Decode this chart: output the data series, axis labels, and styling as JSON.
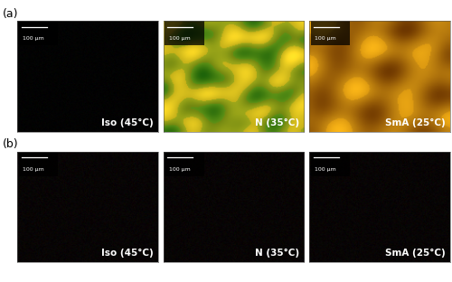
{
  "figure_width": 5.0,
  "figure_height": 3.12,
  "dpi": 100,
  "row_labels": [
    "(a)",
    "(b)"
  ],
  "col_labels": [
    "Iso (45°C)",
    "N (35°C)",
    "SmA (25°C)"
  ],
  "scale_bar_text": "100 μm",
  "background_color": "#ffffff",
  "text_color": "#ffffff",
  "label_color": "#000000",
  "label_fontsize": 7.5,
  "panel_label_fontsize": 9,
  "scale_fontsize": 4.5
}
